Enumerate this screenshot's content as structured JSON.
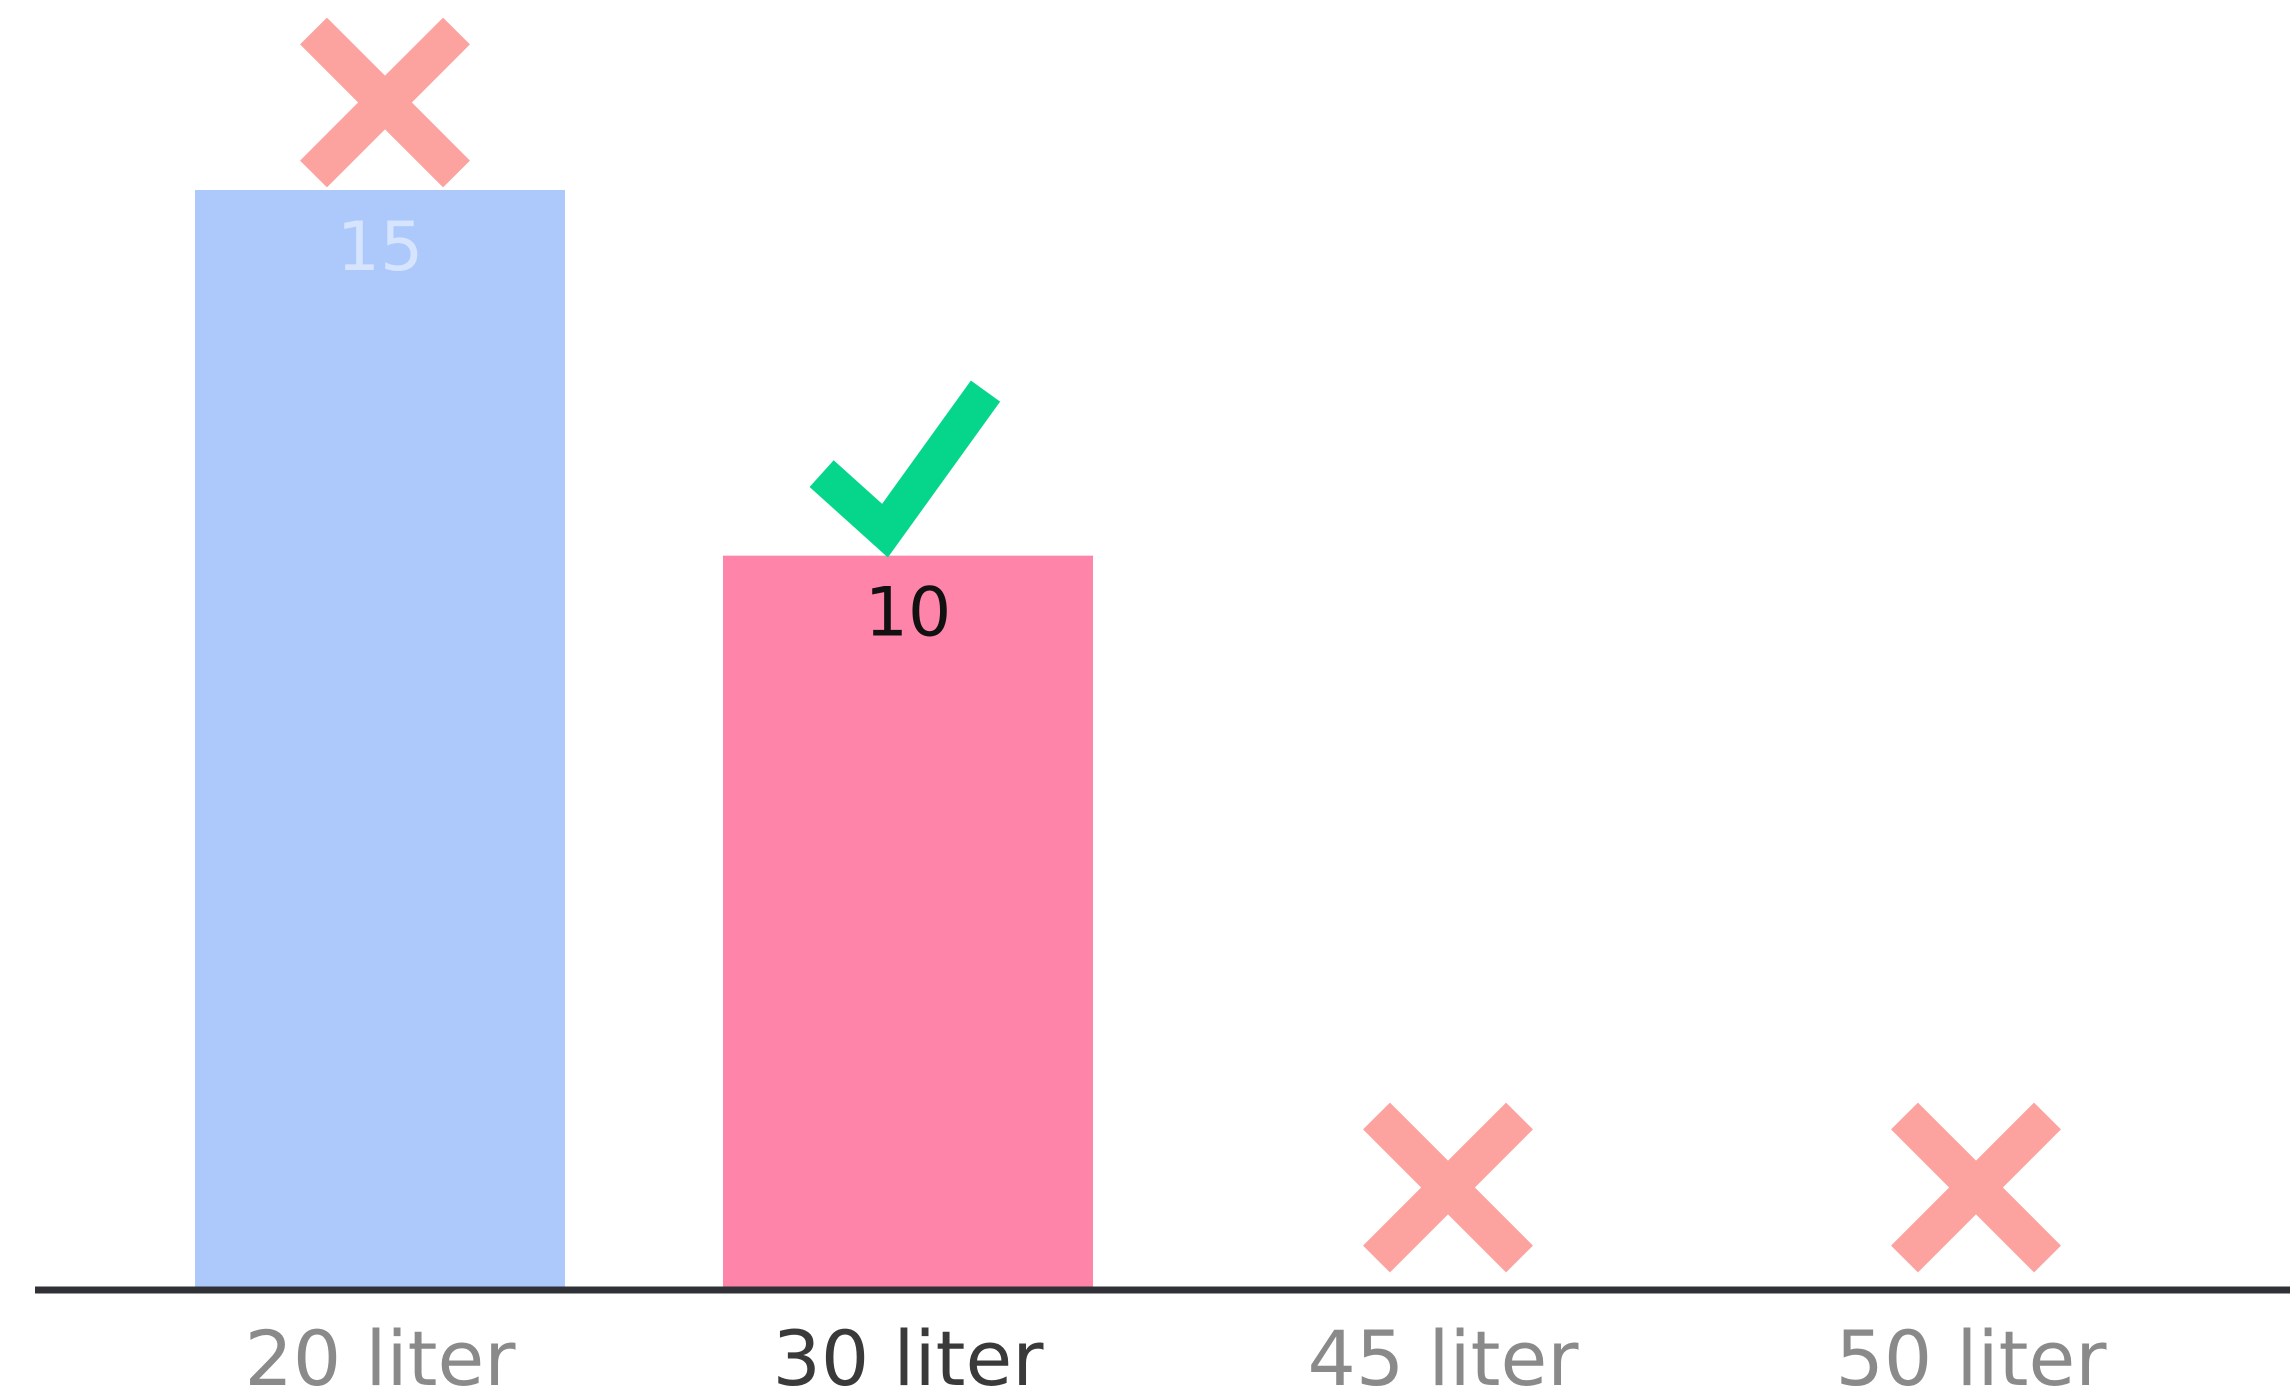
{
  "chart_data": {
    "type": "bar",
    "categories": [
      "20 liter",
      "30 liter",
      "45 liter",
      "50 liter"
    ],
    "values": [
      15,
      10,
      0,
      0
    ],
    "value_labels": [
      "15",
      "10",
      "",
      ""
    ],
    "markers": [
      "cross-icon",
      "check-icon",
      "cross-icon",
      "cross-icon"
    ],
    "ylim": [
      0,
      15
    ],
    "grid": false,
    "legend": "none",
    "bar_colors": [
      "#adc9fb",
      "#fe84aa",
      "#ffffff",
      "#ffffff"
    ],
    "value_label_colors": [
      "#d6e4fd",
      "#111111",
      "#111111",
      "#111111"
    ],
    "category_label_colors": [
      "#8a8a8a",
      "#3a3a3a",
      "#8a8a8a",
      "#8a8a8a"
    ],
    "marker_colors": {
      "cross-icon": "#fca39f",
      "check-icon": "#06d68c"
    },
    "axis_color": "#2f3136"
  }
}
